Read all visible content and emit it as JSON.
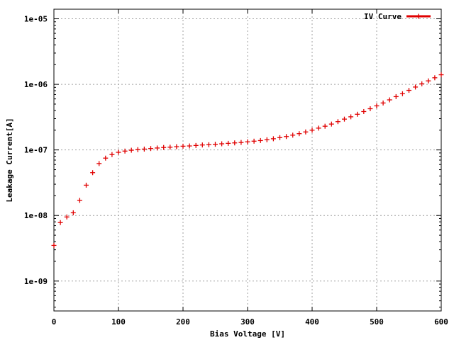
{
  "chart_data": {
    "type": "scatter",
    "title": "",
    "xlabel": "Bias Voltage [V]",
    "ylabel": "Leakage Current[A]",
    "xlim": [
      0,
      600
    ],
    "ylim": [
      3.5e-10,
      1.4e-05
    ],
    "yscale": "log",
    "grid": true,
    "legend_position": "top-right",
    "x_ticks": [
      0,
      100,
      200,
      300,
      400,
      500,
      600
    ],
    "x_tick_labels": [
      "0",
      "100",
      "200",
      "300",
      "400",
      "500",
      "600"
    ],
    "y_ticks": [
      1e-09,
      1e-08,
      1e-07,
      1e-06,
      1e-05
    ],
    "y_tick_labels": [
      "1e-09",
      "1e-08",
      "1e-07",
      "1e-06",
      "1e-05"
    ],
    "series": [
      {
        "name": "IV Curve",
        "color": "#e00000",
        "marker": "plus",
        "x": [
          0,
          10,
          20,
          30,
          40,
          50,
          60,
          70,
          80,
          90,
          100,
          110,
          120,
          130,
          140,
          150,
          160,
          170,
          180,
          190,
          200,
          210,
          220,
          230,
          240,
          250,
          260,
          270,
          280,
          290,
          300,
          310,
          320,
          330,
          340,
          350,
          360,
          370,
          380,
          390,
          400,
          410,
          420,
          430,
          440,
          450,
          460,
          470,
          480,
          490,
          500,
          510,
          520,
          530,
          540,
          550,
          560,
          570,
          580,
          590,
          600
        ],
        "y": [
          3.5e-09,
          7.8e-09,
          9.5e-09,
          1.1e-08,
          1.7e-08,
          2.9e-08,
          4.5e-08,
          6.2e-08,
          7.5e-08,
          8.5e-08,
          9.2e-08,
          9.6e-08,
          9.9e-08,
          1.01e-07,
          1.03e-07,
          1.05e-07,
          1.07e-07,
          1.09e-07,
          1.1e-07,
          1.12e-07,
          1.14e-07,
          1.15e-07,
          1.17e-07,
          1.19e-07,
          1.2e-07,
          1.22e-07,
          1.24e-07,
          1.26e-07,
          1.28e-07,
          1.3e-07,
          1.33e-07,
          1.36e-07,
          1.39e-07,
          1.43e-07,
          1.48e-07,
          1.54e-07,
          1.6e-07,
          1.68e-07,
          1.77e-07,
          1.88e-07,
          2e-07,
          2.15e-07,
          2.3e-07,
          2.48e-07,
          2.7e-07,
          2.95e-07,
          3.2e-07,
          3.5e-07,
          3.85e-07,
          4.25e-07,
          4.7e-07,
          5.2e-07,
          5.8e-07,
          6.5e-07,
          7.2e-07,
          8.1e-07,
          9.1e-07,
          1.02e-06,
          1.13e-06,
          1.26e-06,
          1.4e-06
        ]
      }
    ]
  }
}
